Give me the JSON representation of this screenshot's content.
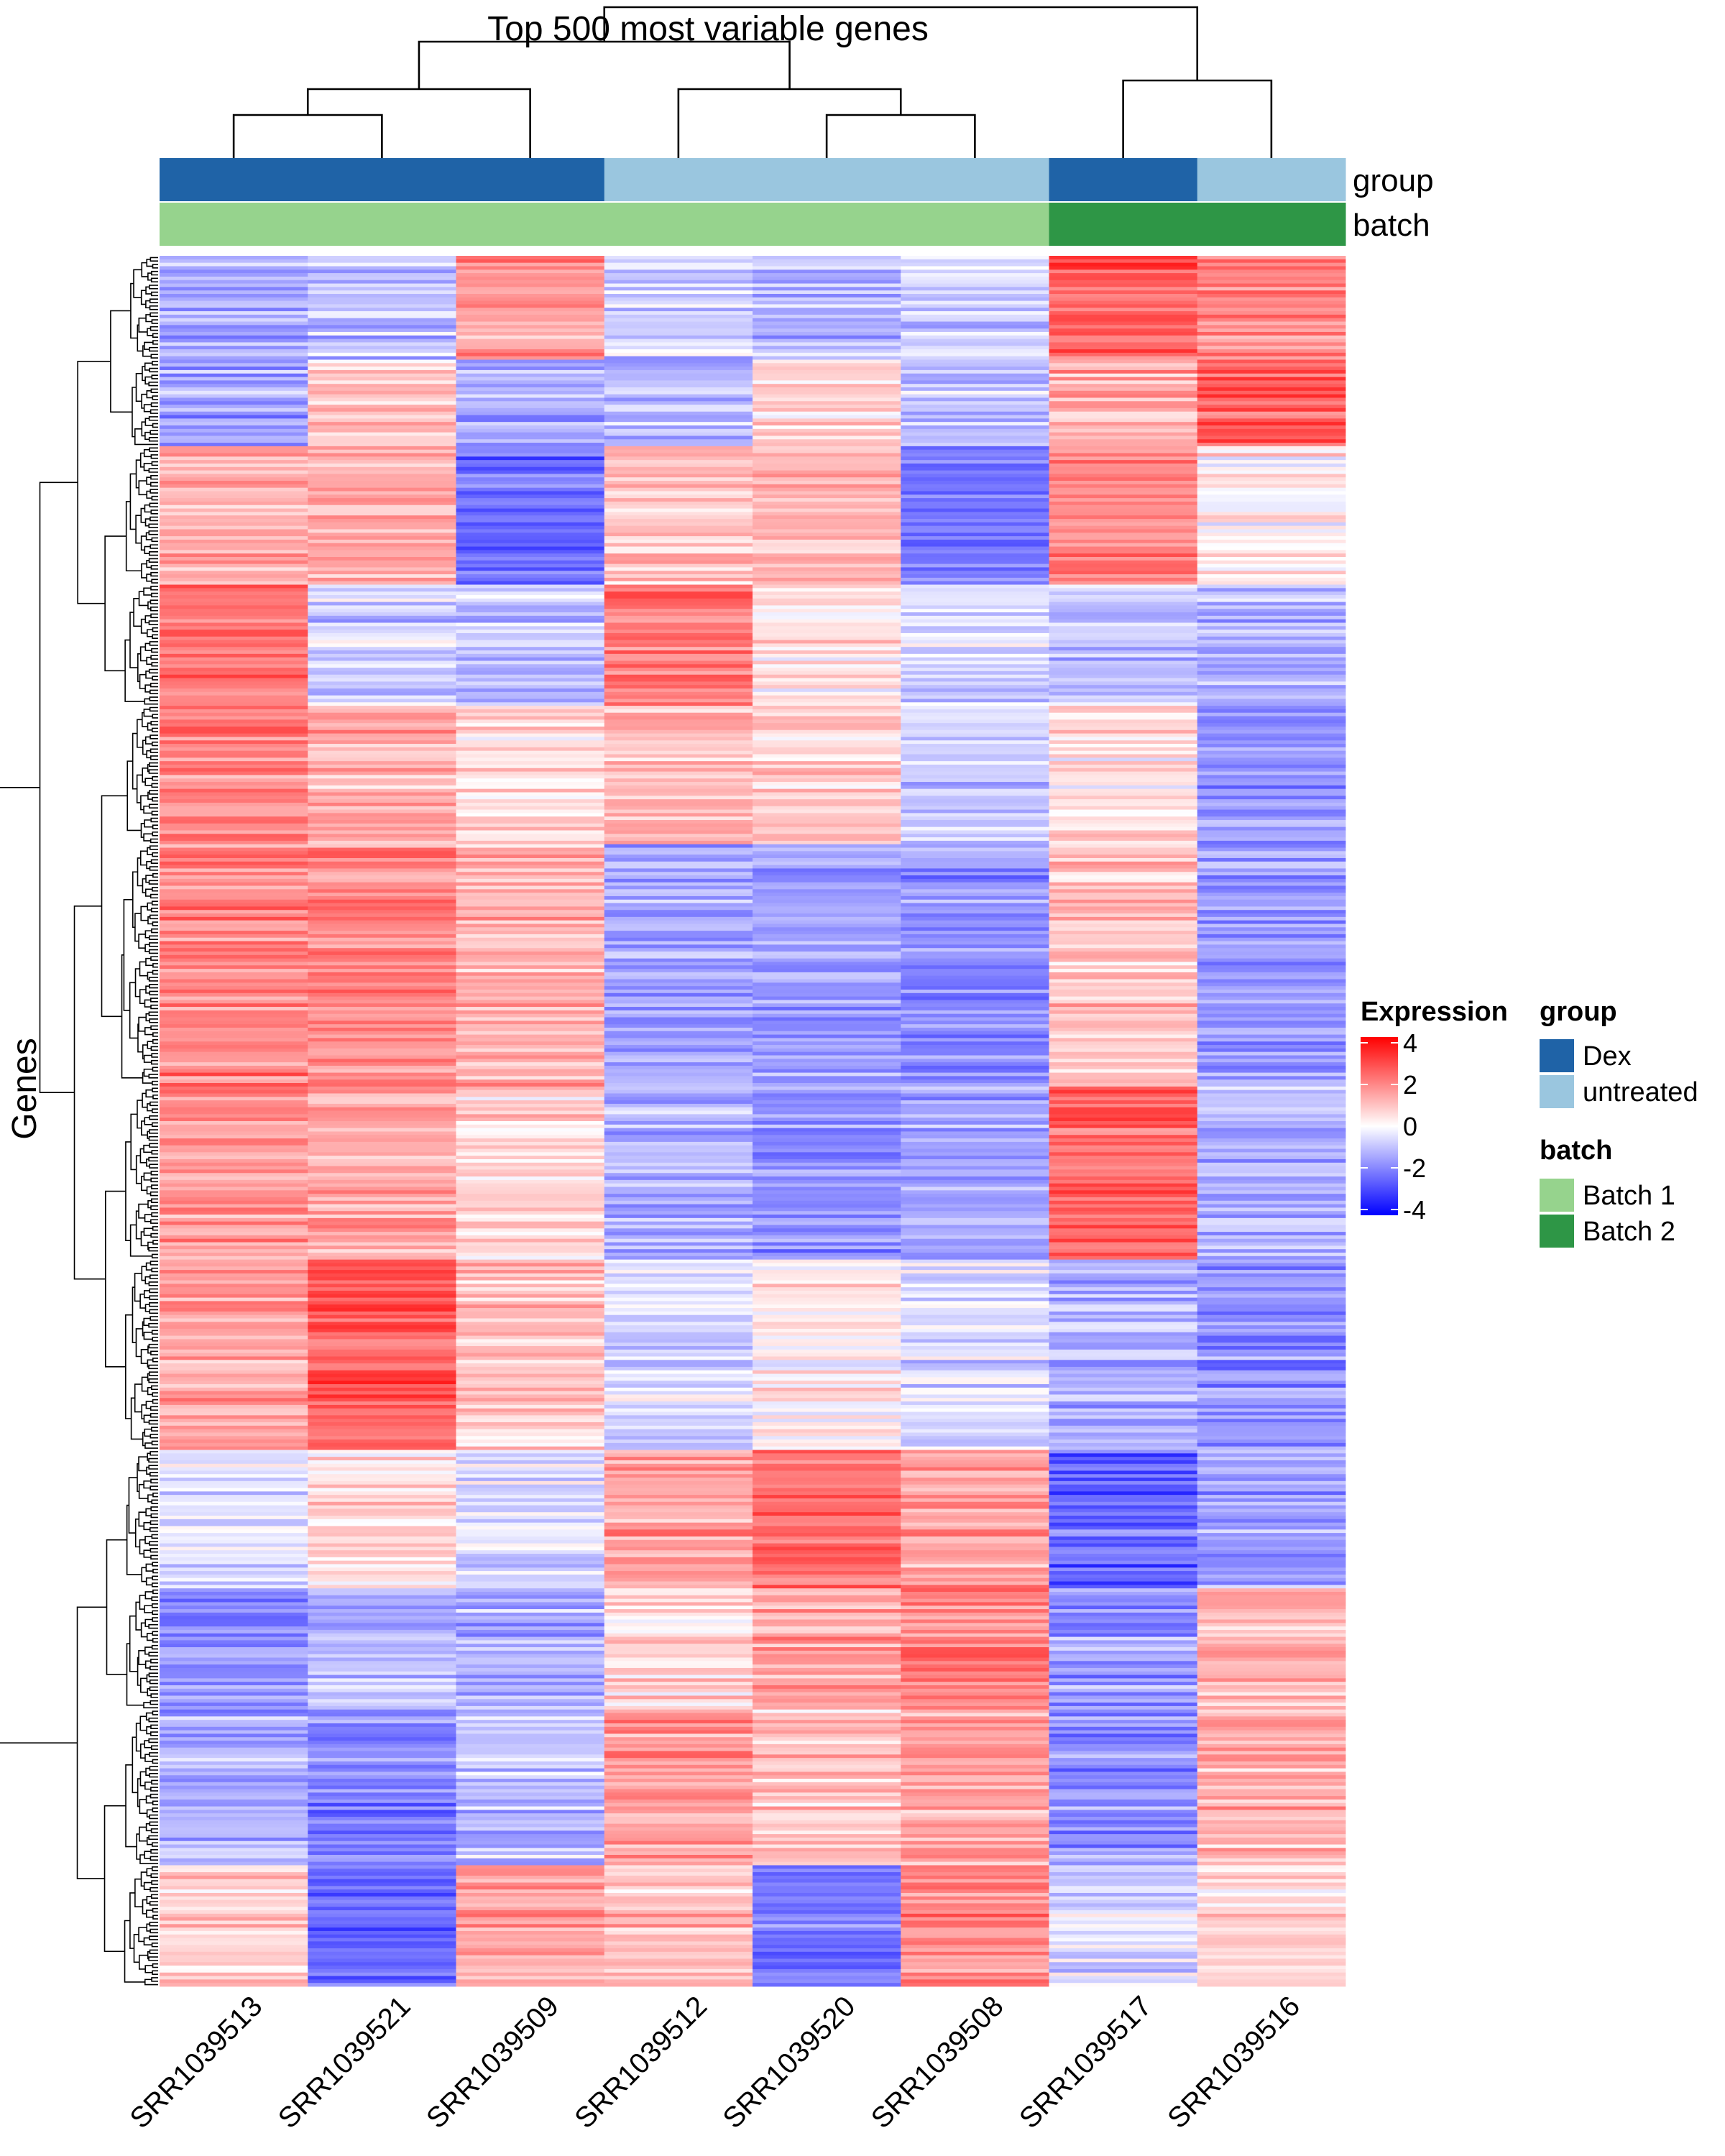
{
  "chart_data": {
    "type": "heatmap",
    "title": "Top 500 most variable genes",
    "ylabel": "Genes",
    "n_genes": 500,
    "samples": [
      "SRR1039513",
      "SRR1039521",
      "SRR1039509",
      "SRR1039512",
      "SRR1039520",
      "SRR1039508",
      "SRR1039517",
      "SRR1039516"
    ],
    "annotations": {
      "group": {
        "label": "group",
        "values": [
          "Dex",
          "Dex",
          "Dex",
          "untreated",
          "untreated",
          "untreated",
          "Dex",
          "untreated"
        ]
      },
      "batch": {
        "label": "batch",
        "values": [
          "Batch 1",
          "Batch 1",
          "Batch 1",
          "Batch 1",
          "Batch 1",
          "Batch 1",
          "Batch 2",
          "Batch 2"
        ]
      }
    },
    "color_scale": {
      "title": "Expression",
      "range": [
        -4,
        4
      ],
      "ticks": [
        "4",
        "2",
        "0",
        "-2",
        "-4"
      ],
      "low": "#0000ff",
      "mid": "#ffffff",
      "high": "#ff0000"
    },
    "legend": {
      "group": {
        "title": "group",
        "items": [
          {
            "label": "Dex",
            "color": "#1f63a7"
          },
          {
            "label": "untreated",
            "color": "#9ac6df"
          }
        ]
      },
      "batch": {
        "title": "batch",
        "items": [
          {
            "label": "Batch 1",
            "color": "#96d38d"
          },
          {
            "label": "Batch 2",
            "color": "#2e9646"
          }
        ]
      }
    },
    "blocks": [
      {
        "start": 0,
        "end": 30,
        "values": [
          -1.2,
          -0.9,
          1.5,
          -0.8,
          -1.1,
          -0.7,
          2.6,
          1.9
        ]
      },
      {
        "start": 30,
        "end": 55,
        "values": [
          -1.4,
          0.9,
          -1.2,
          -1.0,
          0.8,
          -0.9,
          1.4,
          2.5
        ]
      },
      {
        "start": 55,
        "end": 95,
        "values": [
          1.3,
          1.4,
          -2.2,
          1.0,
          1.2,
          -2.0,
          2.0,
          0.3
        ]
      },
      {
        "start": 95,
        "end": 130,
        "values": [
          2.1,
          -0.8,
          -0.9,
          2.2,
          0.4,
          -0.6,
          -0.9,
          -1.2
        ]
      },
      {
        "start": 130,
        "end": 170,
        "values": [
          1.8,
          1.2,
          0.5,
          1.0,
          0.7,
          -0.9,
          0.4,
          -1.8
        ]
      },
      {
        "start": 170,
        "end": 240,
        "values": [
          1.9,
          1.9,
          1.2,
          -1.4,
          -1.5,
          -1.7,
          1.0,
          -1.6
        ]
      },
      {
        "start": 240,
        "end": 290,
        "values": [
          1.6,
          1.4,
          0.6,
          -1.3,
          -1.7,
          -1.4,
          2.3,
          -1.2
        ]
      },
      {
        "start": 290,
        "end": 345,
        "values": [
          1.4,
          2.6,
          0.9,
          -0.6,
          0.3,
          -0.6,
          -1.3,
          -1.7
        ]
      },
      {
        "start": 345,
        "end": 385,
        "values": [
          -0.4,
          0.6,
          -0.5,
          1.5,
          2.3,
          1.5,
          -2.4,
          -1.5
        ]
      },
      {
        "start": 385,
        "end": 420,
        "values": [
          -1.7,
          -1.0,
          -1.2,
          0.7,
          1.4,
          2.0,
          -1.5,
          1.3
        ]
      },
      {
        "start": 420,
        "end": 465,
        "values": [
          -1.3,
          -1.9,
          -1.0,
          1.6,
          0.9,
          1.4,
          -1.7,
          1.2
        ]
      },
      {
        "start": 465,
        "end": 500,
        "values": [
          0.9,
          -2.3,
          1.6,
          1.0,
          -2.2,
          1.9,
          -0.5,
          0.7
        ]
      }
    ],
    "column_dendrogram": {
      "order": [
        "SRR1039513",
        "SRR1039521",
        "SRR1039509",
        "SRR1039512",
        "SRR1039520",
        "SRR1039508",
        "SRR1039517",
        "SRR1039516"
      ],
      "merges": [
        [
          0,
          1,
          1.0
        ],
        [
          -1,
          2,
          1.6
        ],
        [
          4,
          5,
          1.0
        ],
        [
          3,
          -3,
          1.6
        ],
        [
          -2,
          -4,
          2.7
        ],
        [
          6,
          7,
          1.8
        ],
        [
          -5,
          -6,
          3.5
        ]
      ]
    }
  }
}
